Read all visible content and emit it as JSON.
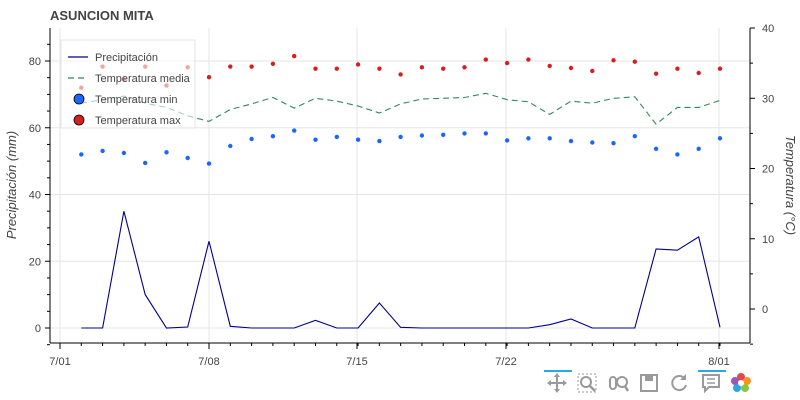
{
  "chart_data": {
    "type": "line",
    "title": "ASUNCION MITA",
    "ylabel_left": "Precipitación (mm)",
    "ylabel_right": "Temperatura (°C)",
    "xlabel": "",
    "x_ticks": [
      "7/01",
      "7/08",
      "7/15",
      "7/22",
      "8/01"
    ],
    "ylim_left": [
      -5,
      90
    ],
    "ylim_right": [
      -5,
      40
    ],
    "yticks_left": [
      0,
      20,
      40,
      60,
      80
    ],
    "yticks_right": [
      0,
      10,
      20,
      30,
      40
    ],
    "grid": true,
    "legend_position": "top-left",
    "dates": [
      "7/02",
      "7/03",
      "7/04",
      "7/05",
      "7/06",
      "7/07",
      "7/08",
      "7/09",
      "7/10",
      "7/11",
      "7/12",
      "7/13",
      "7/14",
      "7/15",
      "7/16",
      "7/17",
      "7/18",
      "7/19",
      "7/20",
      "7/21",
      "7/22",
      "7/23",
      "7/24",
      "7/25",
      "7/26",
      "7/27",
      "7/28",
      "7/29",
      "7/30",
      "7/31",
      "8/01"
    ],
    "series": [
      {
        "name": "Precipitación",
        "axis": "left",
        "style": "line",
        "color": "#00008b",
        "values": [
          0,
          0,
          35,
          10,
          0,
          0.3,
          26,
          0.5,
          0,
          0,
          0,
          2.3,
          0,
          0,
          7.5,
          0.2,
          0,
          0,
          0,
          0,
          0,
          0,
          1,
          2.7,
          0,
          0,
          0,
          23.7,
          23.3,
          27.3,
          0.2
        ]
      },
      {
        "name": "Temperatura media",
        "axis": "right",
        "style": "dashed",
        "color": "#2e8b57",
        "values": [
          29.3,
          29.8,
          30.3,
          29.3,
          28.7,
          27.5,
          26.7,
          28.4,
          29.2,
          30.1,
          28.6,
          30.0,
          29.6,
          28.9,
          27.9,
          29.2,
          29.9,
          30.0,
          30.1,
          30.7,
          29.8,
          29.5,
          27.7,
          29.6,
          29.3,
          30.0,
          30.2,
          26.3,
          28.7,
          28.7,
          29.7
        ]
      },
      {
        "name": "Temperatura min",
        "axis": "right",
        "style": "dots",
        "color": "#1a66ff",
        "values": [
          22.0,
          22.5,
          22.2,
          20.8,
          22.3,
          21.5,
          20.7,
          23.2,
          24.2,
          24.6,
          25.4,
          24.1,
          24.5,
          24.1,
          23.9,
          24.5,
          24.7,
          24.8,
          25.0,
          25.0,
          24.0,
          24.3,
          24.3,
          23.9,
          23.7,
          23.6,
          24.6,
          22.8,
          22.0,
          22.8,
          24.3
        ]
      },
      {
        "name": "Temperatura max",
        "axis": "right",
        "style": "dots",
        "color": "#d62020",
        "values": [
          31.5,
          34.5,
          32.7,
          34.5,
          31.8,
          34.4,
          33.0,
          34.5,
          34.5,
          34.9,
          36.0,
          34.2,
          34.2,
          34.8,
          34.2,
          33.4,
          34.4,
          34.2,
          34.4,
          35.5,
          35.0,
          35.5,
          34.6,
          34.3,
          33.9,
          35.4,
          35.2,
          33.5,
          34.2,
          33.6,
          34.2
        ]
      }
    ]
  },
  "toolbar": {
    "tools": [
      {
        "name": "pan-tool-icon",
        "active": true
      },
      {
        "name": "box-zoom-tool-icon",
        "active": false
      },
      {
        "name": "wheel-zoom-tool-icon",
        "active": false
      },
      {
        "name": "save-tool-icon",
        "active": false
      },
      {
        "name": "reset-tool-icon",
        "active": false
      },
      {
        "name": "hover-tool-icon",
        "active": true
      },
      {
        "name": "bokeh-logo-icon",
        "active": false
      }
    ]
  }
}
